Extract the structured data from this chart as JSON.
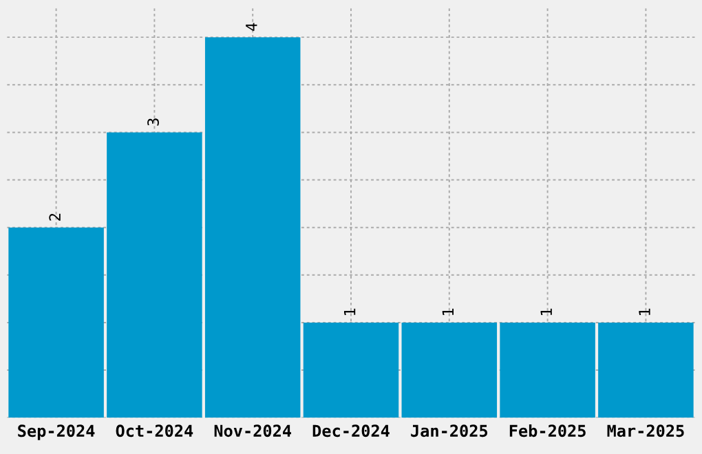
{
  "chart_data": {
    "type": "bar",
    "categories": [
      "Sep-2024",
      "Oct-2024",
      "Nov-2024",
      "Dec-2024",
      "Jan-2025",
      "Feb-2025",
      "Mar-2025"
    ],
    "values": [
      2,
      3,
      4,
      1,
      1,
      1,
      1
    ],
    "color": "#0099cc",
    "data_labels": true,
    "grid": true,
    "tick_labels": "x"
  }
}
